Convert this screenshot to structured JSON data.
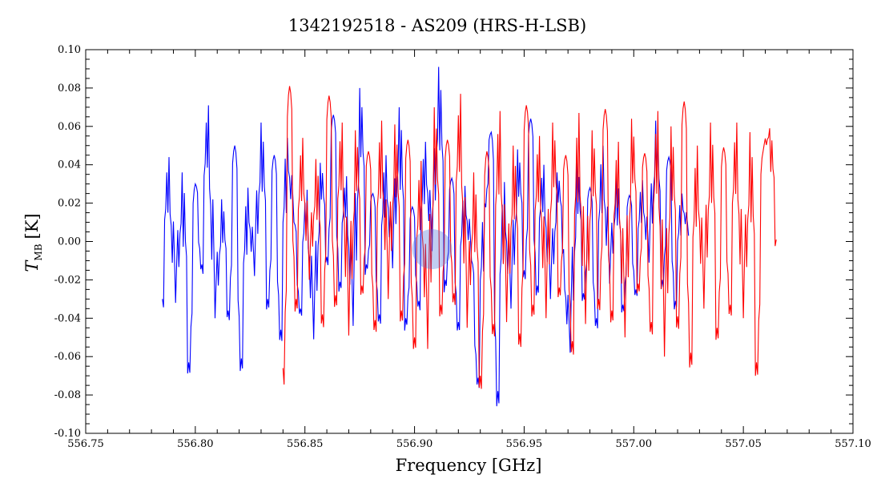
{
  "chart_data": {
    "type": "line",
    "title": "1342192518 - AS209 (HRS-H-LSB)",
    "xlabel": "Frequency [GHz]",
    "ylabel_main": "T",
    "ylabel_sub": "MB",
    "ylabel_unit": "[K]",
    "xlim": [
      556.75,
      557.1
    ],
    "ylim": [
      -0.1,
      0.1
    ],
    "x_ticks": [
      "556.75",
      "556.80",
      "556.85",
      "556.90",
      "556.95",
      "557.00",
      "557.05",
      "557.10"
    ],
    "y_ticks": [
      "-0.10",
      "-0.08",
      "-0.06",
      "-0.04",
      "-0.02",
      "0.00",
      "0.02",
      "0.04",
      "0.06",
      "0.08",
      "0.10"
    ],
    "grid": false,
    "series": [
      {
        "color": "#0000ff",
        "x": [
          556.785,
          556.788,
          556.791,
          556.794,
          556.797,
          556.8,
          556.803,
          556.806,
          556.809,
          556.812,
          556.815,
          556.818,
          556.821,
          556.824,
          556.827,
          556.83,
          556.833,
          556.836,
          556.839,
          556.842,
          556.845,
          556.848,
          556.851,
          556.854,
          556.857,
          556.86,
          556.863,
          556.866,
          556.869,
          556.872,
          556.875,
          556.878,
          556.881,
          556.884,
          556.887,
          556.89,
          556.893,
          556.896,
          556.899,
          556.902,
          556.905,
          556.908,
          556.911,
          556.914,
          556.917,
          556.92,
          556.923,
          556.926,
          556.929,
          556.932,
          556.935,
          556.938,
          556.941,
          556.944,
          556.947,
          556.95,
          556.953,
          556.956,
          556.959,
          556.962,
          556.965,
          556.968,
          556.971,
          556.974,
          556.977,
          556.98,
          556.983,
          556.986,
          556.989,
          556.992,
          556.995,
          556.998,
          557.001,
          557.004,
          557.007,
          557.01,
          557.013,
          557.016,
          557.019,
          557.022,
          557.025
        ],
        "y": [
          -0.03,
          0.044,
          -0.032,
          0.036,
          -0.063,
          0.03,
          -0.012,
          0.071,
          -0.04,
          0.022,
          -0.036,
          0.05,
          -0.061,
          0.028,
          -0.018,
          0.062,
          -0.03,
          0.045,
          -0.046,
          0.054,
          0.01,
          -0.035,
          0.027,
          -0.051,
          0.041,
          -0.008,
          0.066,
          -0.021,
          0.034,
          -0.044,
          0.08,
          -0.012,
          0.025,
          -0.038,
          0.045,
          -0.014,
          0.07,
          -0.04,
          0.018,
          -0.031,
          0.052,
          -0.005,
          0.091,
          -0.02,
          0.033,
          -0.042,
          0.029,
          -0.01,
          -0.071,
          0.02,
          0.057,
          -0.078,
          0.031,
          -0.035,
          0.048,
          -0.015,
          0.064,
          -0.023,
          0.04,
          -0.03,
          0.036,
          -0.004,
          -0.058,
          0.041,
          -0.027,
          0.028,
          -0.04,
          0.05,
          -0.022,
          0.035,
          -0.033,
          0.024,
          -0.025,
          0.032,
          -0.011,
          0.063,
          -0.02,
          0.044,
          -0.031,
          0.025,
          0.003
        ],
        "x2": [
          556.78,
          556.785,
          556.79,
          556.795,
          556.8,
          556.805,
          556.81,
          556.815,
          556.82,
          556.825,
          556.83,
          556.835,
          556.84,
          556.845,
          556.85,
          556.855,
          556.86,
          556.865,
          556.87,
          556.875,
          556.88,
          556.885,
          556.89,
          556.895,
          556.9,
          556.905,
          556.91,
          556.915,
          556.92,
          556.925,
          556.93,
          556.935,
          556.94,
          556.945,
          556.95,
          556.955,
          556.96,
          556.965,
          556.97,
          556.975,
          556.98,
          556.985,
          556.99,
          556.995,
          557.0,
          557.005,
          557.01,
          557.015,
          557.02,
          557.025
        ]
      },
      {
        "color": "#ff0000",
        "x": [
          556.84,
          556.843,
          556.846,
          556.849,
          556.852,
          556.855,
          556.858,
          556.861,
          556.864,
          556.867,
          556.87,
          556.873,
          556.876,
          556.879,
          556.882,
          556.885,
          556.888,
          556.891,
          556.894,
          556.897,
          556.9,
          556.903,
          556.906,
          556.909,
          556.912,
          556.915,
          556.918,
          556.921,
          556.924,
          556.927,
          556.93,
          556.933,
          556.936,
          556.939,
          556.942,
          556.945,
          556.948,
          556.951,
          556.954,
          556.957,
          556.96,
          556.963,
          556.966,
          556.969,
          556.972,
          556.975,
          556.978,
          556.981,
          556.984,
          556.987,
          556.99,
          556.993,
          556.996,
          556.999,
          557.002,
          557.005,
          557.008,
          557.011,
          557.014,
          557.017,
          557.02,
          557.023,
          557.026,
          557.029,
          557.032,
          557.035,
          557.038,
          557.041,
          557.044,
          557.047,
          557.05,
          557.053,
          557.056,
          557.059,
          557.062,
          557.065
        ],
        "y": [
          -0.066,
          0.081,
          -0.03,
          0.054,
          -0.02,
          0.043,
          -0.038,
          0.076,
          -0.028,
          0.062,
          -0.049,
          0.058,
          -0.023,
          0.047,
          -0.041,
          0.063,
          -0.03,
          0.061,
          -0.036,
          0.053,
          -0.05,
          0.042,
          -0.056,
          0.07,
          -0.033,
          0.053,
          -0.027,
          0.077,
          -0.045,
          0.036,
          -0.07,
          0.047,
          -0.043,
          0.068,
          -0.042,
          0.05,
          -0.048,
          0.071,
          -0.033,
          0.055,
          -0.04,
          0.062,
          -0.024,
          0.045,
          -0.052,
          0.067,
          -0.043,
          0.058,
          -0.03,
          0.069,
          -0.036,
          0.052,
          -0.05,
          0.064,
          -0.022,
          0.046,
          -0.042,
          0.068,
          -0.06,
          0.06,
          -0.039,
          0.073,
          -0.058,
          0.05,
          -0.035,
          0.062,
          -0.045,
          0.049,
          -0.033,
          0.062,
          -0.04,
          0.057,
          -0.063,
          0.047,
          0.059,
          0.001
        ]
      }
    ]
  }
}
